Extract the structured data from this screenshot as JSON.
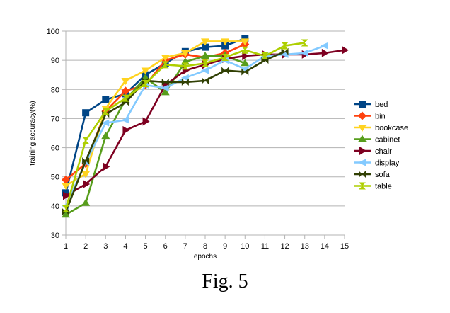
{
  "caption": "Fig. 5",
  "chart_data": {
    "type": "line",
    "xlabel": "epochs",
    "ylabel": "training accuracy(%)",
    "xlim": [
      1,
      15
    ],
    "ylim": [
      30,
      100
    ],
    "xticks": [
      1,
      2,
      3,
      4,
      5,
      6,
      7,
      8,
      9,
      10,
      11,
      12,
      13,
      14,
      15
    ],
    "yticks": [
      30,
      40,
      50,
      60,
      70,
      80,
      90,
      100
    ],
    "grid": "horizontal",
    "legend_position": "right",
    "series": [
      {
        "name": "bed",
        "color": "#004586",
        "marker": "square",
        "x": [
          1,
          2,
          3,
          4,
          5,
          6,
          7,
          8,
          9,
          10
        ],
        "y": [
          44.5,
          72,
          76.5,
          78.5,
          85,
          89,
          93,
          94.5,
          95,
          97.5
        ]
      },
      {
        "name": "bin",
        "color": "#ff420e",
        "marker": "diamond",
        "x": [
          1,
          2,
          3,
          4,
          5,
          6,
          7,
          8,
          9,
          10
        ],
        "y": [
          49,
          54.5,
          72.5,
          79.5,
          81.5,
          90,
          92,
          91,
          92.5,
          95.5
        ]
      },
      {
        "name": "bookcase",
        "color": "#ffd320",
        "marker": "triangle-down",
        "x": [
          1,
          2,
          3,
          4,
          5,
          6,
          7,
          8,
          9,
          10
        ],
        "y": [
          47,
          51,
          73.5,
          83,
          86.5,
          91,
          92.5,
          96.5,
          96.5,
          96.5
        ]
      },
      {
        "name": "cabinet",
        "color": "#579d1c",
        "marker": "triangle-up",
        "x": [
          1,
          2,
          3,
          4,
          5,
          6,
          7,
          8,
          9,
          10
        ],
        "y": [
          37,
          41,
          64,
          76.5,
          84,
          79,
          89.5,
          91.5,
          91.5,
          89
        ]
      },
      {
        "name": "chair",
        "color": "#7e0021",
        "marker": "triangle-right",
        "x": [
          1,
          2,
          3,
          4,
          5,
          6,
          7,
          8,
          9,
          10,
          11,
          12,
          13,
          14,
          15
        ],
        "y": [
          43.5,
          47.5,
          53.5,
          66,
          69,
          81.5,
          86.5,
          88.5,
          90.5,
          91.5,
          92,
          92,
          92,
          92.5,
          93.5
        ]
      },
      {
        "name": "display",
        "color": "#83caff",
        "marker": "diamond-left",
        "x": [
          1,
          2,
          3,
          4,
          5,
          6,
          7,
          8,
          9,
          10,
          11,
          12,
          13,
          14
        ],
        "y": [
          40,
          55,
          68.5,
          69.5,
          81.5,
          80.5,
          84,
          86.5,
          90,
          87,
          91.5,
          92,
          92.5,
          95
        ]
      },
      {
        "name": "sofa",
        "color": "#314004",
        "marker": "bowtie",
        "x": [
          1,
          2,
          3,
          4,
          5,
          6,
          7,
          8,
          9,
          10,
          11,
          12
        ],
        "y": [
          38,
          55.5,
          71.5,
          75.5,
          83,
          82.5,
          82.5,
          83,
          86.5,
          86,
          90,
          93
        ]
      },
      {
        "name": "table",
        "color": "#aecf00",
        "marker": "hourglass",
        "x": [
          1,
          2,
          3,
          4,
          5,
          6,
          7,
          8,
          9,
          10,
          11,
          12,
          13
        ],
        "y": [
          39,
          62.5,
          72.5,
          77,
          82,
          88.5,
          88,
          89,
          91,
          93.5,
          91.5,
          95,
          96
        ]
      }
    ]
  }
}
